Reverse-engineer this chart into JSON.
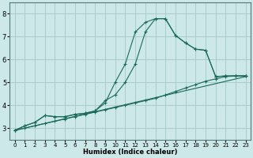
{
  "xlabel": "Humidex (Indice chaleur)",
  "bg_color": "#cce8e8",
  "grid_color": "#aacccc",
  "line_color": "#1a6a5a",
  "xlim": [
    -0.5,
    23.5
  ],
  "ylim": [
    2.5,
    8.5
  ],
  "xticks": [
    0,
    1,
    2,
    3,
    4,
    5,
    6,
    7,
    8,
    9,
    10,
    11,
    12,
    13,
    14,
    15,
    16,
    17,
    18,
    19,
    20,
    21,
    22,
    23
  ],
  "yticks": [
    3,
    4,
    5,
    6,
    7,
    8
  ],
  "lines": [
    {
      "x": [
        0,
        1,
        2,
        3,
        4,
        5,
        6,
        7,
        8,
        9,
        10,
        11,
        12,
        13,
        14,
        15,
        16,
        17,
        18,
        19,
        20,
        21,
        22,
        23
      ],
      "y": [
        2.9,
        3.1,
        3.25,
        3.55,
        3.5,
        3.5,
        3.6,
        3.65,
        3.75,
        4.1,
        5.0,
        5.8,
        7.2,
        7.62,
        7.78,
        7.78,
        7.05,
        6.72,
        6.45,
        6.4,
        5.25,
        5.28,
        5.28,
        5.28
      ],
      "has_markers": true
    },
    {
      "x": [
        0,
        1,
        2,
        3,
        4,
        5,
        6,
        7,
        8,
        9,
        10,
        11,
        12,
        13,
        14,
        15,
        16,
        17,
        18,
        19,
        20,
        21,
        22,
        23
      ],
      "y": [
        2.9,
        3.1,
        3.25,
        3.55,
        3.5,
        3.5,
        3.6,
        3.65,
        3.75,
        4.2,
        4.45,
        5.0,
        5.8,
        7.2,
        7.78,
        7.78,
        7.05,
        6.72,
        6.45,
        6.4,
        5.25,
        5.28,
        5.28,
        5.28
      ],
      "has_markers": true
    },
    {
      "x": [
        0,
        23
      ],
      "y": [
        2.9,
        5.25
      ],
      "has_markers": false
    },
    {
      "x": [
        0,
        1,
        2,
        3,
        4,
        5,
        6,
        7,
        8,
        9,
        10,
        11,
        12,
        13,
        14,
        15,
        16,
        17,
        18,
        19,
        20,
        21,
        22,
        23
      ],
      "y": [
        2.9,
        3.0,
        3.1,
        3.2,
        3.3,
        3.4,
        3.5,
        3.6,
        3.7,
        3.8,
        3.9,
        4.0,
        4.1,
        4.2,
        4.3,
        4.45,
        4.6,
        4.75,
        4.9,
        5.05,
        5.15,
        5.25,
        5.28,
        5.28
      ],
      "has_markers": true
    }
  ]
}
